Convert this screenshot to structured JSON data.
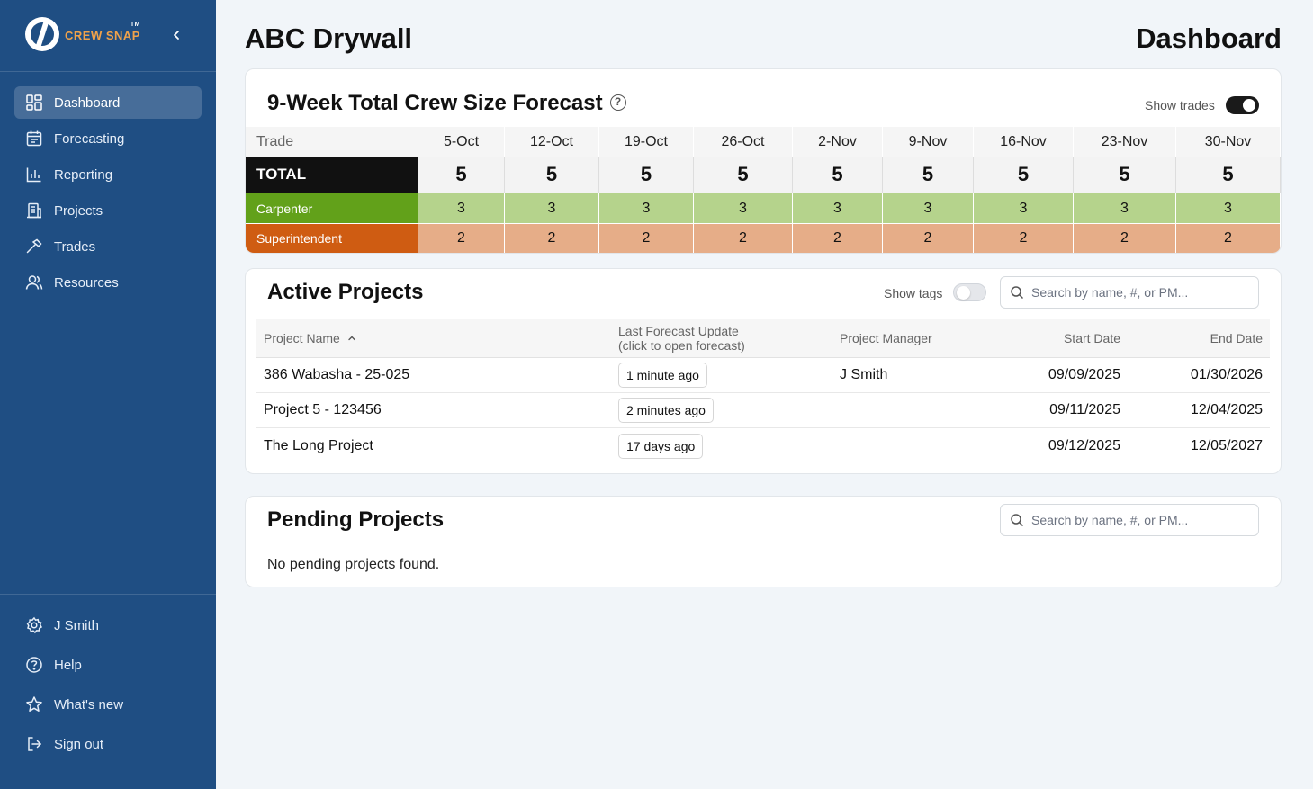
{
  "app": {
    "logo_text": "CREW SNAP",
    "logo_tm": "TM"
  },
  "sidebar": {
    "items": [
      {
        "label": "Dashboard",
        "icon": "dashboard-icon"
      },
      {
        "label": "Forecasting",
        "icon": "calendar-icon"
      },
      {
        "label": "Reporting",
        "icon": "bar-chart-icon"
      },
      {
        "label": "Projects",
        "icon": "building-icon"
      },
      {
        "label": "Trades",
        "icon": "hammer-icon"
      },
      {
        "label": "Resources",
        "icon": "users-icon"
      }
    ],
    "bottom": [
      {
        "label": "J Smith",
        "icon": "gear-icon"
      },
      {
        "label": "Help",
        "icon": "help-icon"
      },
      {
        "label": "What's new",
        "icon": "star-icon"
      },
      {
        "label": "Sign out",
        "icon": "sign-out-icon"
      }
    ]
  },
  "header": {
    "company": "ABC Drywall",
    "page": "Dashboard"
  },
  "forecast": {
    "title": "9-Week Total Crew Size Forecast",
    "show_trades_label": "Show trades",
    "show_trades": true,
    "trade_header": "Trade",
    "weeks": [
      "5-Oct",
      "12-Oct",
      "19-Oct",
      "26-Oct",
      "2-Nov",
      "9-Nov",
      "16-Nov",
      "23-Nov",
      "30-Nov"
    ],
    "total": {
      "label": "TOTAL",
      "values": [
        "5",
        "5",
        "5",
        "5",
        "5",
        "5",
        "5",
        "5",
        "5"
      ]
    },
    "trades": [
      {
        "label": "Carpenter",
        "values": [
          "3",
          "3",
          "3",
          "3",
          "3",
          "3",
          "3",
          "3",
          "3"
        ],
        "color": "#62a11a",
        "cell_color": "#b5d38c"
      },
      {
        "label": "Superintendent",
        "values": [
          "2",
          "2",
          "2",
          "2",
          "2",
          "2",
          "2",
          "2",
          "2"
        ],
        "color": "#cf5c12",
        "cell_color": "#e6ad88"
      }
    ]
  },
  "active": {
    "title": "Active Projects",
    "show_tags_label": "Show tags",
    "show_tags": false,
    "search_placeholder": "Search by name, #, or PM...",
    "columns": {
      "name": "Project Name",
      "update_line1": "Last Forecast Update",
      "update_line2": "(click to open forecast)",
      "pm": "Project Manager",
      "start": "Start Date",
      "end": "End Date"
    },
    "rows": [
      {
        "name": "386 Wabasha - 25-025",
        "update": "1 minute ago",
        "pm": "J Smith",
        "start": "09/09/2025",
        "end": "01/30/2026"
      },
      {
        "name": "Project 5 - 123456",
        "update": "2 minutes ago",
        "pm": "",
        "start": "09/11/2025",
        "end": "12/04/2025"
      },
      {
        "name": "The Long Project",
        "update": "17 days ago",
        "pm": "",
        "start": "09/12/2025",
        "end": "12/05/2027"
      }
    ]
  },
  "pending": {
    "title": "Pending Projects",
    "search_placeholder": "Search by name, #, or PM...",
    "empty": "No pending projects found."
  }
}
